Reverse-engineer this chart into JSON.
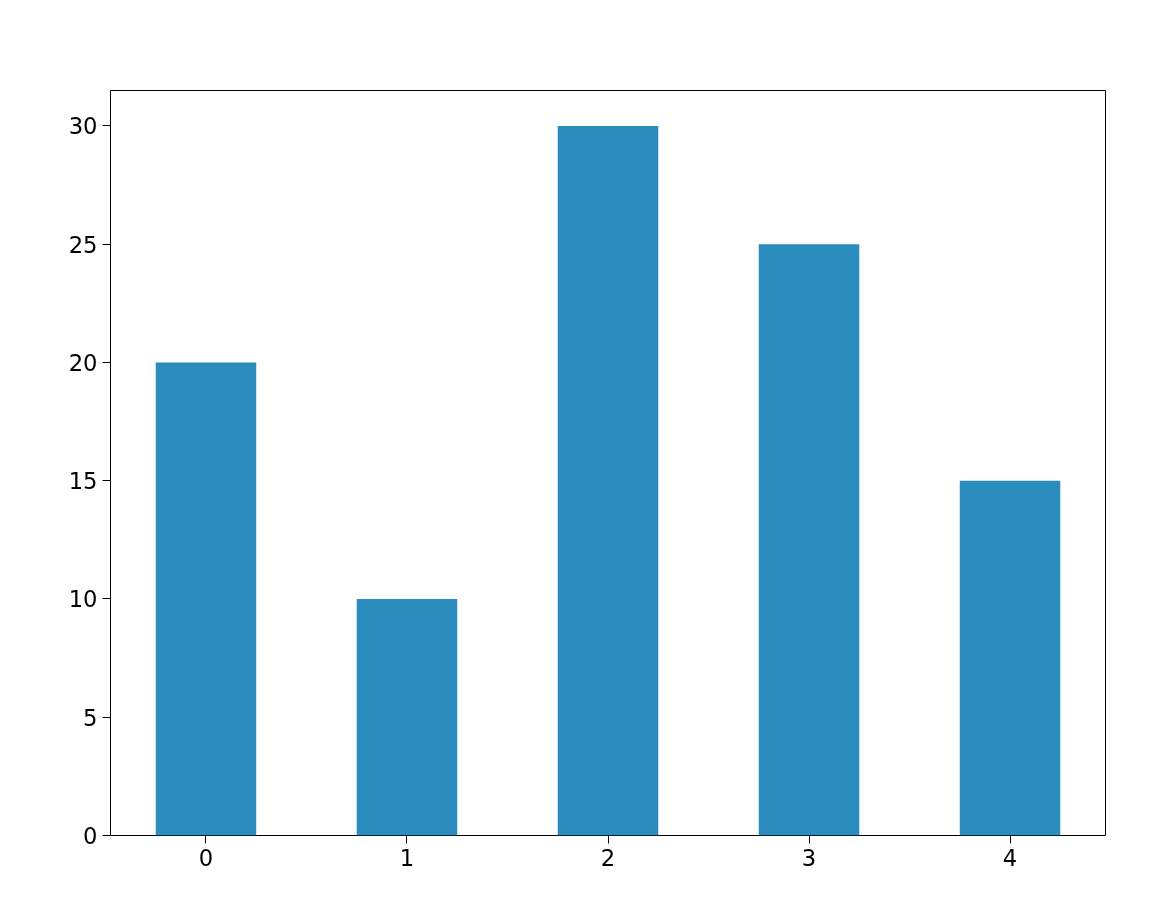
{
  "chart_data": {
    "type": "bar",
    "categories": [
      "0",
      "1",
      "2",
      "3",
      "4"
    ],
    "values": [
      20,
      10,
      30,
      25,
      15
    ],
    "color": "#2b8cbe",
    "ylim": [
      0,
      31.5
    ],
    "yticks": [
      0,
      5,
      10,
      15,
      20,
      25,
      30
    ],
    "grid": false
  }
}
